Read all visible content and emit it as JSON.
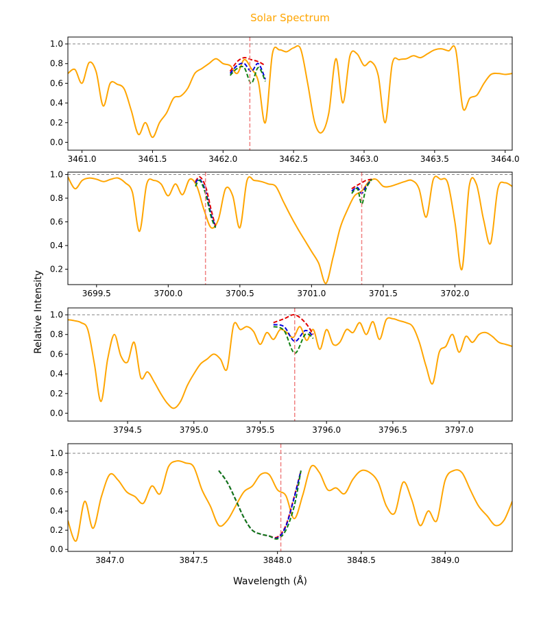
{
  "chart_data": {
    "type": "line",
    "title": "Solar Spectrum",
    "xlabel": "Wavelength (Å)",
    "ylabel": "Relative Intensity",
    "colors": {
      "spectrum": "#ffa500",
      "reference": "#808080",
      "marker": "#f08080",
      "model_red": "#e00000",
      "model_blue": "#0000dd",
      "model_green": "#108010"
    },
    "panels": [
      {
        "xlim": [
          3460.9,
          3464.05
        ],
        "ylim": [
          -0.08,
          1.07
        ],
        "xticks": [
          "3461.0",
          "3461.5",
          "3462.0",
          "3462.5",
          "3463.0",
          "3463.5",
          "3464.0"
        ],
        "yticks": [
          "0.0",
          "0.2",
          "0.4",
          "0.6",
          "0.8",
          "1.0"
        ],
        "reference_level": 1.0,
        "markers": [
          3462.19
        ],
        "spectrum": {
          "x": [
            3460.9,
            3460.95,
            3461.0,
            3461.05,
            3461.1,
            3461.15,
            3461.2,
            3461.25,
            3461.3,
            3461.35,
            3461.4,
            3461.45,
            3461.5,
            3461.55,
            3461.6,
            3461.65,
            3461.7,
            3461.75,
            3461.8,
            3461.85,
            3461.9,
            3461.95,
            3462.0,
            3462.05,
            3462.1,
            3462.15,
            3462.2,
            3462.25,
            3462.3,
            3462.35,
            3462.4,
            3462.45,
            3462.5,
            3462.55,
            3462.6,
            3462.65,
            3462.7,
            3462.75,
            3462.8,
            3462.85,
            3462.9,
            3462.95,
            3463.0,
            3463.05,
            3463.1,
            3463.15,
            3463.2,
            3463.25,
            3463.3,
            3463.35,
            3463.4,
            3463.45,
            3463.5,
            3463.55,
            3463.6,
            3463.65,
            3463.7,
            3463.75,
            3463.8,
            3463.85,
            3463.9,
            3463.95,
            3464.0,
            3464.05
          ],
          "y": [
            0.7,
            0.74,
            0.6,
            0.81,
            0.72,
            0.37,
            0.6,
            0.59,
            0.54,
            0.32,
            0.08,
            0.2,
            0.05,
            0.2,
            0.3,
            0.45,
            0.47,
            0.55,
            0.7,
            0.75,
            0.8,
            0.85,
            0.8,
            0.78,
            0.7,
            0.84,
            0.75,
            0.62,
            0.2,
            0.9,
            0.94,
            0.92,
            0.96,
            0.95,
            0.6,
            0.2,
            0.1,
            0.3,
            0.85,
            0.4,
            0.88,
            0.9,
            0.78,
            0.82,
            0.68,
            0.2,
            0.8,
            0.84,
            0.85,
            0.88,
            0.86,
            0.9,
            0.94,
            0.95,
            0.93,
            0.94,
            0.35,
            0.45,
            0.48,
            0.6,
            0.69,
            0.7,
            0.69,
            0.7
          ]
        },
        "models": [
          {
            "name": "red",
            "x": [
              3462.05,
              3462.1,
              3462.15,
              3462.2,
              3462.25,
              3462.3
            ],
            "y": [
              0.72,
              0.82,
              0.86,
              0.84,
              0.82,
              0.78
            ]
          },
          {
            "name": "blue",
            "x": [
              3462.05,
              3462.1,
              3462.15,
              3462.2,
              3462.25,
              3462.3
            ],
            "y": [
              0.7,
              0.78,
              0.8,
              0.72,
              0.8,
              0.64
            ]
          },
          {
            "name": "green",
            "x": [
              3462.05,
              3462.1,
              3462.15,
              3462.2,
              3462.25,
              3462.3
            ],
            "y": [
              0.68,
              0.75,
              0.76,
              0.6,
              0.76,
              0.62
            ]
          }
        ]
      },
      {
        "xlim": [
          3699.3,
          3702.4
        ],
        "ylim": [
          0.07,
          1.02
        ],
        "xticks": [
          "3699.5",
          "3700.0",
          "3700.5",
          "3701.0",
          "3701.5",
          "3702.0"
        ],
        "yticks": [
          "0.2",
          "0.4",
          "0.6",
          "0.8",
          "1.0"
        ],
        "reference_level": 1.0,
        "markers": [
          3700.26,
          3701.35
        ],
        "spectrum": {
          "x": [
            3699.3,
            3699.35,
            3699.4,
            3699.45,
            3699.5,
            3699.55,
            3699.6,
            3699.65,
            3699.7,
            3699.75,
            3699.8,
            3699.85,
            3699.9,
            3699.95,
            3700.0,
            3700.05,
            3700.1,
            3700.15,
            3700.2,
            3700.25,
            3700.3,
            3700.35,
            3700.4,
            3700.45,
            3700.5,
            3700.55,
            3700.6,
            3700.65,
            3700.7,
            3700.75,
            3700.8,
            3700.85,
            3700.9,
            3700.95,
            3701.0,
            3701.05,
            3701.1,
            3701.15,
            3701.2,
            3701.25,
            3701.3,
            3701.35,
            3701.4,
            3701.45,
            3701.5,
            3701.55,
            3701.6,
            3701.65,
            3701.7,
            3701.75,
            3701.8,
            3701.85,
            3701.9,
            3701.95,
            3702.0,
            3702.05,
            3702.1,
            3702.15,
            3702.2,
            3702.25,
            3702.3,
            3702.35,
            3702.4
          ],
          "y": [
            0.98,
            0.88,
            0.95,
            0.97,
            0.96,
            0.94,
            0.96,
            0.97,
            0.93,
            0.85,
            0.52,
            0.92,
            0.95,
            0.92,
            0.82,
            0.92,
            0.83,
            0.96,
            0.9,
            0.7,
            0.55,
            0.62,
            0.88,
            0.82,
            0.55,
            0.95,
            0.95,
            0.94,
            0.92,
            0.9,
            0.78,
            0.66,
            0.55,
            0.45,
            0.35,
            0.25,
            0.08,
            0.3,
            0.55,
            0.7,
            0.82,
            0.86,
            0.94,
            0.96,
            0.9,
            0.9,
            0.92,
            0.94,
            0.95,
            0.88,
            0.64,
            0.96,
            0.96,
            0.93,
            0.6,
            0.2,
            0.9,
            0.92,
            0.62,
            0.42,
            0.88,
            0.93,
            0.9
          ]
        },
        "models": [
          {
            "name": "red",
            "x": [
              3700.19,
              3700.22,
              3700.26,
              3700.3,
              3700.33
            ],
            "y": [
              0.94,
              0.98,
              0.9,
              0.7,
              0.56
            ]
          },
          {
            "name": "blue",
            "x": [
              3700.19,
              3700.22,
              3700.26,
              3700.3,
              3700.33
            ],
            "y": [
              0.93,
              0.96,
              0.86,
              0.66,
              0.56
            ]
          },
          {
            "name": "green",
            "x": [
              3700.19,
              3700.22,
              3700.26,
              3700.3,
              3700.33
            ],
            "y": [
              0.9,
              0.95,
              0.84,
              0.64,
              0.55
            ]
          },
          {
            "name": "red",
            "x": [
              3701.28,
              3701.32,
              3701.35,
              3701.38,
              3701.42
            ],
            "y": [
              0.88,
              0.91,
              0.93,
              0.95,
              0.96
            ]
          },
          {
            "name": "blue",
            "x": [
              3701.28,
              3701.32,
              3701.35,
              3701.38,
              3701.42
            ],
            "y": [
              0.86,
              0.89,
              0.84,
              0.9,
              0.96
            ]
          },
          {
            "name": "green",
            "x": [
              3701.28,
              3701.32,
              3701.35,
              3701.38,
              3701.42
            ],
            "y": [
              0.84,
              0.88,
              0.75,
              0.88,
              0.96
            ]
          }
        ]
      },
      {
        "xlim": [
          3794.05,
          3797.4
        ],
        "ylim": [
          -0.08,
          1.07
        ],
        "xticks": [
          "3794.5",
          "3795.0",
          "3795.5",
          "3796.0",
          "3796.5",
          "3797.0"
        ],
        "yticks": [
          "0.0",
          "0.2",
          "0.4",
          "0.6",
          "0.8",
          "1.0"
        ],
        "reference_level": 1.0,
        "markers": [
          3795.76
        ],
        "spectrum": {
          "x": [
            3794.05,
            3794.1,
            3794.15,
            3794.2,
            3794.25,
            3794.3,
            3794.35,
            3794.4,
            3794.45,
            3794.5,
            3794.55,
            3794.6,
            3794.65,
            3794.7,
            3794.75,
            3794.8,
            3794.85,
            3794.9,
            3794.95,
            3795.0,
            3795.05,
            3795.1,
            3795.15,
            3795.2,
            3795.25,
            3795.3,
            3795.35,
            3795.4,
            3795.45,
            3795.5,
            3795.55,
            3795.6,
            3795.65,
            3795.7,
            3795.75,
            3795.8,
            3795.85,
            3795.9,
            3795.95,
            3796.0,
            3796.05,
            3796.1,
            3796.15,
            3796.2,
            3796.25,
            3796.3,
            3796.35,
            3796.4,
            3796.45,
            3796.5,
            3796.55,
            3796.6,
            3796.65,
            3796.7,
            3796.75,
            3796.8,
            3796.85,
            3796.9,
            3796.95,
            3797.0,
            3797.05,
            3797.1,
            3797.15,
            3797.2,
            3797.25,
            3797.3,
            3797.35,
            3797.4
          ],
          "y": [
            0.95,
            0.94,
            0.92,
            0.85,
            0.5,
            0.12,
            0.55,
            0.8,
            0.58,
            0.52,
            0.72,
            0.36,
            0.42,
            0.32,
            0.2,
            0.1,
            0.05,
            0.12,
            0.28,
            0.4,
            0.5,
            0.55,
            0.6,
            0.55,
            0.45,
            0.9,
            0.85,
            0.88,
            0.83,
            0.7,
            0.82,
            0.75,
            0.85,
            0.82,
            0.77,
            0.88,
            0.74,
            0.85,
            0.65,
            0.85,
            0.7,
            0.72,
            0.85,
            0.82,
            0.92,
            0.8,
            0.93,
            0.75,
            0.95,
            0.96,
            0.94,
            0.92,
            0.88,
            0.72,
            0.48,
            0.3,
            0.62,
            0.68,
            0.8,
            0.62,
            0.78,
            0.72,
            0.8,
            0.82,
            0.78,
            0.72,
            0.7,
            0.68
          ]
        },
        "models": [
          {
            "name": "red",
            "x": [
              3795.6,
              3795.68,
              3795.76,
              3795.84,
              3795.9
            ],
            "y": [
              0.92,
              0.96,
              1.0,
              0.92,
              0.8
            ]
          },
          {
            "name": "blue",
            "x": [
              3795.6,
              3795.68,
              3795.76,
              3795.84,
              3795.9
            ],
            "y": [
              0.9,
              0.88,
              0.73,
              0.84,
              0.78
            ]
          },
          {
            "name": "green",
            "x": [
              3795.6,
              3795.68,
              3795.76,
              3795.84,
              3795.9
            ],
            "y": [
              0.88,
              0.84,
              0.61,
              0.8,
              0.76
            ]
          }
        ]
      },
      {
        "xlim": [
          3846.75,
          3849.4
        ],
        "ylim": [
          -0.02,
          1.1
        ],
        "xticks": [
          "3847.0",
          "3847.5",
          "3848.0",
          "3848.5",
          "3849.0"
        ],
        "yticks": [
          "0.0",
          "0.2",
          "0.4",
          "0.6",
          "0.8",
          "1.0"
        ],
        "reference_level": 1.0,
        "markers": [
          3848.02
        ],
        "spectrum": {
          "x": [
            3846.75,
            3846.8,
            3846.85,
            3846.9,
            3846.95,
            3847.0,
            3847.05,
            3847.1,
            3847.15,
            3847.2,
            3847.25,
            3847.3,
            3847.35,
            3847.4,
            3847.45,
            3847.5,
            3847.55,
            3847.6,
            3847.65,
            3847.7,
            3847.75,
            3847.8,
            3847.85,
            3847.9,
            3847.95,
            3848.0,
            3848.05,
            3848.1,
            3848.15,
            3848.2,
            3848.25,
            3848.3,
            3848.35,
            3848.4,
            3848.45,
            3848.5,
            3848.55,
            3848.6,
            3848.65,
            3848.7,
            3848.75,
            3848.8,
            3848.85,
            3848.9,
            3848.95,
            3849.0,
            3849.05,
            3849.1,
            3849.15,
            3849.2,
            3849.25,
            3849.3,
            3849.35,
            3849.4
          ],
          "y": [
            0.3,
            0.09,
            0.5,
            0.22,
            0.55,
            0.78,
            0.72,
            0.6,
            0.55,
            0.48,
            0.66,
            0.58,
            0.86,
            0.92,
            0.9,
            0.86,
            0.62,
            0.45,
            0.25,
            0.3,
            0.45,
            0.6,
            0.66,
            0.78,
            0.78,
            0.62,
            0.56,
            0.32,
            0.56,
            0.86,
            0.8,
            0.62,
            0.64,
            0.58,
            0.73,
            0.82,
            0.8,
            0.7,
            0.45,
            0.38,
            0.7,
            0.52,
            0.25,
            0.4,
            0.3,
            0.72,
            0.82,
            0.8,
            0.62,
            0.45,
            0.35,
            0.25,
            0.3,
            0.5
          ]
        },
        "models": [
          {
            "name": "red",
            "x": [
              3847.65,
              3847.7,
              3847.75,
              3847.8,
              3847.85,
              3847.9,
              3847.95,
              3848.0,
              3848.05,
              3848.1,
              3848.14
            ],
            "y": [
              0.82,
              0.7,
              0.52,
              0.33,
              0.2,
              0.16,
              0.14,
              0.13,
              0.25,
              0.55,
              0.82
            ]
          },
          {
            "name": "blue",
            "x": [
              3847.65,
              3847.7,
              3847.75,
              3847.8,
              3847.85,
              3847.9,
              3847.95,
              3848.0,
              3848.05,
              3848.1,
              3848.14
            ],
            "y": [
              0.82,
              0.7,
              0.52,
              0.33,
              0.2,
              0.16,
              0.14,
              0.12,
              0.24,
              0.54,
              0.82
            ]
          },
          {
            "name": "green",
            "x": [
              3847.65,
              3847.7,
              3847.75,
              3847.8,
              3847.85,
              3847.9,
              3847.95,
              3848.0,
              3848.05,
              3848.1,
              3848.14
            ],
            "y": [
              0.82,
              0.7,
              0.52,
              0.33,
              0.2,
              0.16,
              0.14,
              0.11,
              0.2,
              0.45,
              0.82
            ]
          }
        ]
      }
    ]
  }
}
